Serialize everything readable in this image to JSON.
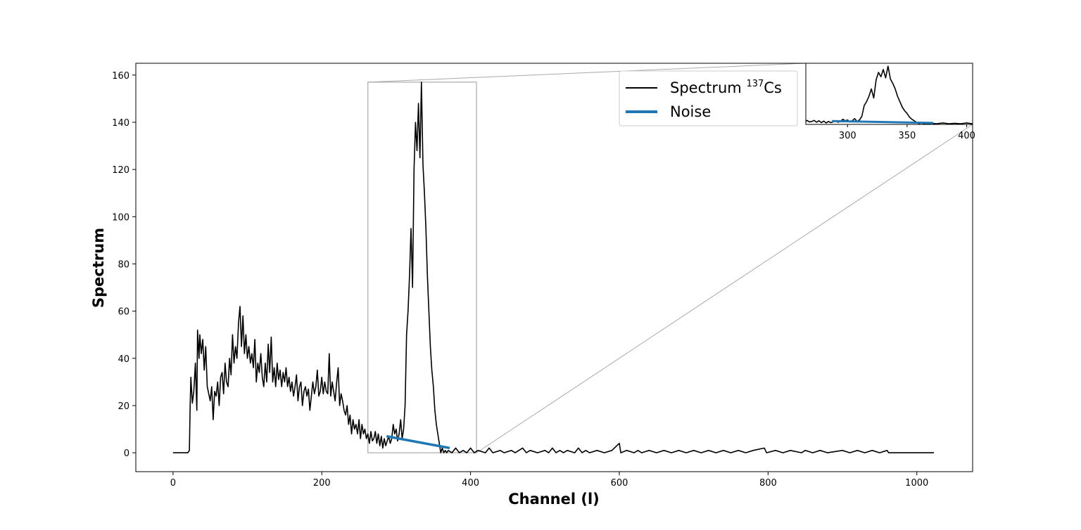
{
  "chart_data": {
    "type": "line",
    "xlabel": "Channel (l)",
    "ylabel": "Spectrum",
    "xlim": [
      -50,
      1075
    ],
    "ylim": [
      -8,
      165
    ],
    "xticks": [
      0,
      200,
      400,
      600,
      800,
      1000
    ],
    "yticks": [
      0,
      20,
      40,
      60,
      80,
      100,
      120,
      140,
      160
    ],
    "grid": false,
    "legend_position": "upper-right (left of inset)",
    "colors": {
      "spectrum": "#000000",
      "noise": "#1f77b4",
      "zoom_box": "#aaaaaa"
    },
    "legend": {
      "spectrum_label": "Spectrum ",
      "spectrum_isotope_superscript": "137",
      "spectrum_isotope_element": "Cs",
      "noise_label": "Noise"
    },
    "series": [
      {
        "name": "Spectrum 137Cs",
        "color": "#000000",
        "points": [
          [
            0,
            0
          ],
          [
            20,
            0
          ],
          [
            22,
            1
          ],
          [
            23,
            20
          ],
          [
            24,
            32
          ],
          [
            26,
            21
          ],
          [
            28,
            26
          ],
          [
            30,
            38
          ],
          [
            32,
            18
          ],
          [
            33,
            52
          ],
          [
            35,
            40
          ],
          [
            36,
            50
          ],
          [
            38,
            42
          ],
          [
            40,
            48
          ],
          [
            42,
            35
          ],
          [
            44,
            45
          ],
          [
            46,
            28
          ],
          [
            48,
            25
          ],
          [
            50,
            22
          ],
          [
            52,
            28
          ],
          [
            54,
            14
          ],
          [
            56,
            26
          ],
          [
            58,
            24
          ],
          [
            60,
            30
          ],
          [
            62,
            20
          ],
          [
            64,
            32
          ],
          [
            66,
            34
          ],
          [
            68,
            25
          ],
          [
            70,
            38
          ],
          [
            72,
            30
          ],
          [
            74,
            28
          ],
          [
            76,
            40
          ],
          [
            78,
            33
          ],
          [
            80,
            50
          ],
          [
            82,
            38
          ],
          [
            84,
            45
          ],
          [
            86,
            40
          ],
          [
            88,
            55
          ],
          [
            90,
            62
          ],
          [
            92,
            45
          ],
          [
            94,
            58
          ],
          [
            96,
            42
          ],
          [
            98,
            50
          ],
          [
            100,
            40
          ],
          [
            102,
            45
          ],
          [
            104,
            38
          ],
          [
            106,
            42
          ],
          [
            108,
            36
          ],
          [
            110,
            48
          ],
          [
            112,
            30
          ],
          [
            114,
            38
          ],
          [
            116,
            34
          ],
          [
            118,
            42
          ],
          [
            120,
            32
          ],
          [
            122,
            28
          ],
          [
            124,
            38
          ],
          [
            126,
            30
          ],
          [
            128,
            46
          ],
          [
            130,
            34
          ],
          [
            132,
            49
          ],
          [
            134,
            30
          ],
          [
            136,
            36
          ],
          [
            138,
            28
          ],
          [
            140,
            38
          ],
          [
            142,
            31
          ],
          [
            144,
            35
          ],
          [
            146,
            28
          ],
          [
            148,
            34
          ],
          [
            150,
            30
          ],
          [
            152,
            36
          ],
          [
            154,
            28
          ],
          [
            156,
            32
          ],
          [
            158,
            26
          ],
          [
            160,
            30
          ],
          [
            162,
            24
          ],
          [
            164,
            28
          ],
          [
            166,
            33
          ],
          [
            168,
            22
          ],
          [
            170,
            28
          ],
          [
            172,
            30
          ],
          [
            174,
            20
          ],
          [
            176,
            26
          ],
          [
            178,
            28
          ],
          [
            180,
            24
          ],
          [
            182,
            27
          ],
          [
            184,
            18
          ],
          [
            186,
            24
          ],
          [
            188,
            30
          ],
          [
            190,
            25
          ],
          [
            192,
            28
          ],
          [
            194,
            35
          ],
          [
            196,
            24
          ],
          [
            198,
            26
          ],
          [
            200,
            32
          ],
          [
            202,
            25
          ],
          [
            204,
            30
          ],
          [
            206,
            26
          ],
          [
            208,
            25
          ],
          [
            210,
            42
          ],
          [
            212,
            24
          ],
          [
            214,
            30
          ],
          [
            216,
            26
          ],
          [
            218,
            22
          ],
          [
            220,
            30
          ],
          [
            222,
            36
          ],
          [
            224,
            20
          ],
          [
            226,
            25
          ],
          [
            228,
            22
          ],
          [
            230,
            18
          ],
          [
            232,
            16
          ],
          [
            234,
            20
          ],
          [
            236,
            12
          ],
          [
            238,
            16
          ],
          [
            240,
            8
          ],
          [
            242,
            14
          ],
          [
            244,
            10
          ],
          [
            246,
            12
          ],
          [
            248,
            8
          ],
          [
            250,
            14
          ],
          [
            252,
            6
          ],
          [
            254,
            12
          ],
          [
            256,
            8
          ],
          [
            258,
            10
          ],
          [
            260,
            6
          ],
          [
            262,
            8
          ],
          [
            264,
            4
          ],
          [
            266,
            9
          ],
          [
            268,
            5
          ],
          [
            270,
            6
          ],
          [
            272,
            9
          ],
          [
            274,
            4
          ],
          [
            276,
            8
          ],
          [
            278,
            3
          ],
          [
            280,
            7
          ],
          [
            282,
            2
          ],
          [
            284,
            6
          ],
          [
            286,
            3
          ],
          [
            288,
            5
          ],
          [
            290,
            7
          ],
          [
            292,
            4
          ],
          [
            294,
            6
          ],
          [
            296,
            12
          ],
          [
            298,
            8
          ],
          [
            300,
            10
          ],
          [
            302,
            5
          ],
          [
            304,
            8
          ],
          [
            306,
            14
          ],
          [
            308,
            6
          ],
          [
            310,
            10
          ],
          [
            312,
            20
          ],
          [
            314,
            50
          ],
          [
            316,
            60
          ],
          [
            318,
            75
          ],
          [
            320,
            95
          ],
          [
            322,
            70
          ],
          [
            324,
            120
          ],
          [
            326,
            140
          ],
          [
            328,
            128
          ],
          [
            330,
            148
          ],
          [
            332,
            125
          ],
          [
            334,
            157
          ],
          [
            336,
            122
          ],
          [
            338,
            110
          ],
          [
            340,
            95
          ],
          [
            342,
            75
          ],
          [
            344,
            60
          ],
          [
            346,
            45
          ],
          [
            348,
            35
          ],
          [
            350,
            28
          ],
          [
            352,
            18
          ],
          [
            354,
            12
          ],
          [
            356,
            8
          ],
          [
            358,
            4
          ],
          [
            360,
            0
          ],
          [
            362,
            2
          ],
          [
            364,
            0
          ],
          [
            366,
            1
          ],
          [
            368,
            0
          ],
          [
            370,
            1
          ],
          [
            375,
            0
          ],
          [
            380,
            2
          ],
          [
            385,
            0
          ],
          [
            390,
            1
          ],
          [
            395,
            0
          ],
          [
            400,
            2
          ],
          [
            405,
            0
          ],
          [
            410,
            1
          ],
          [
            420,
            0
          ],
          [
            425,
            2
          ],
          [
            430,
            0
          ],
          [
            440,
            1
          ],
          [
            445,
            0
          ],
          [
            455,
            1
          ],
          [
            460,
            0
          ],
          [
            470,
            2
          ],
          [
            475,
            0
          ],
          [
            480,
            1
          ],
          [
            490,
            0
          ],
          [
            500,
            1
          ],
          [
            505,
            0
          ],
          [
            510,
            2
          ],
          [
            515,
            0
          ],
          [
            520,
            1
          ],
          [
            525,
            0
          ],
          [
            530,
            1
          ],
          [
            540,
            0
          ],
          [
            545,
            2
          ],
          [
            550,
            0
          ],
          [
            555,
            1
          ],
          [
            560,
            0
          ],
          [
            570,
            1
          ],
          [
            580,
            0
          ],
          [
            590,
            1
          ],
          [
            600,
            4
          ],
          [
            602,
            0
          ],
          [
            610,
            1
          ],
          [
            620,
            0
          ],
          [
            625,
            1
          ],
          [
            630,
            0
          ],
          [
            640,
            1
          ],
          [
            650,
            0
          ],
          [
            660,
            1
          ],
          [
            670,
            0
          ],
          [
            680,
            1
          ],
          [
            690,
            0
          ],
          [
            700,
            1
          ],
          [
            710,
            0
          ],
          [
            720,
            1
          ],
          [
            730,
            0
          ],
          [
            740,
            1
          ],
          [
            750,
            0
          ],
          [
            760,
            1
          ],
          [
            770,
            0
          ],
          [
            780,
            1
          ],
          [
            795,
            2
          ],
          [
            798,
            0
          ],
          [
            810,
            1
          ],
          [
            820,
            0
          ],
          [
            830,
            1
          ],
          [
            845,
            0
          ],
          [
            850,
            1
          ],
          [
            860,
            0
          ],
          [
            870,
            1
          ],
          [
            880,
            0
          ],
          [
            900,
            1
          ],
          [
            910,
            0
          ],
          [
            920,
            1
          ],
          [
            930,
            0
          ],
          [
            940,
            1
          ],
          [
            950,
            0
          ],
          [
            960,
            1
          ],
          [
            962,
            0
          ],
          [
            1023,
            0
          ]
        ]
      },
      {
        "name": "Noise",
        "color": "#1f77b4",
        "points": [
          [
            287,
            7
          ],
          [
            372,
            2
          ]
        ]
      }
    ],
    "zoom_box": {
      "x": [
        262,
        408
      ],
      "y": [
        0,
        157
      ]
    },
    "inset": {
      "xlim": [
        265,
        405
      ],
      "ylim": [
        -2,
        165
      ],
      "xticks": [
        300,
        350,
        400
      ]
    }
  }
}
